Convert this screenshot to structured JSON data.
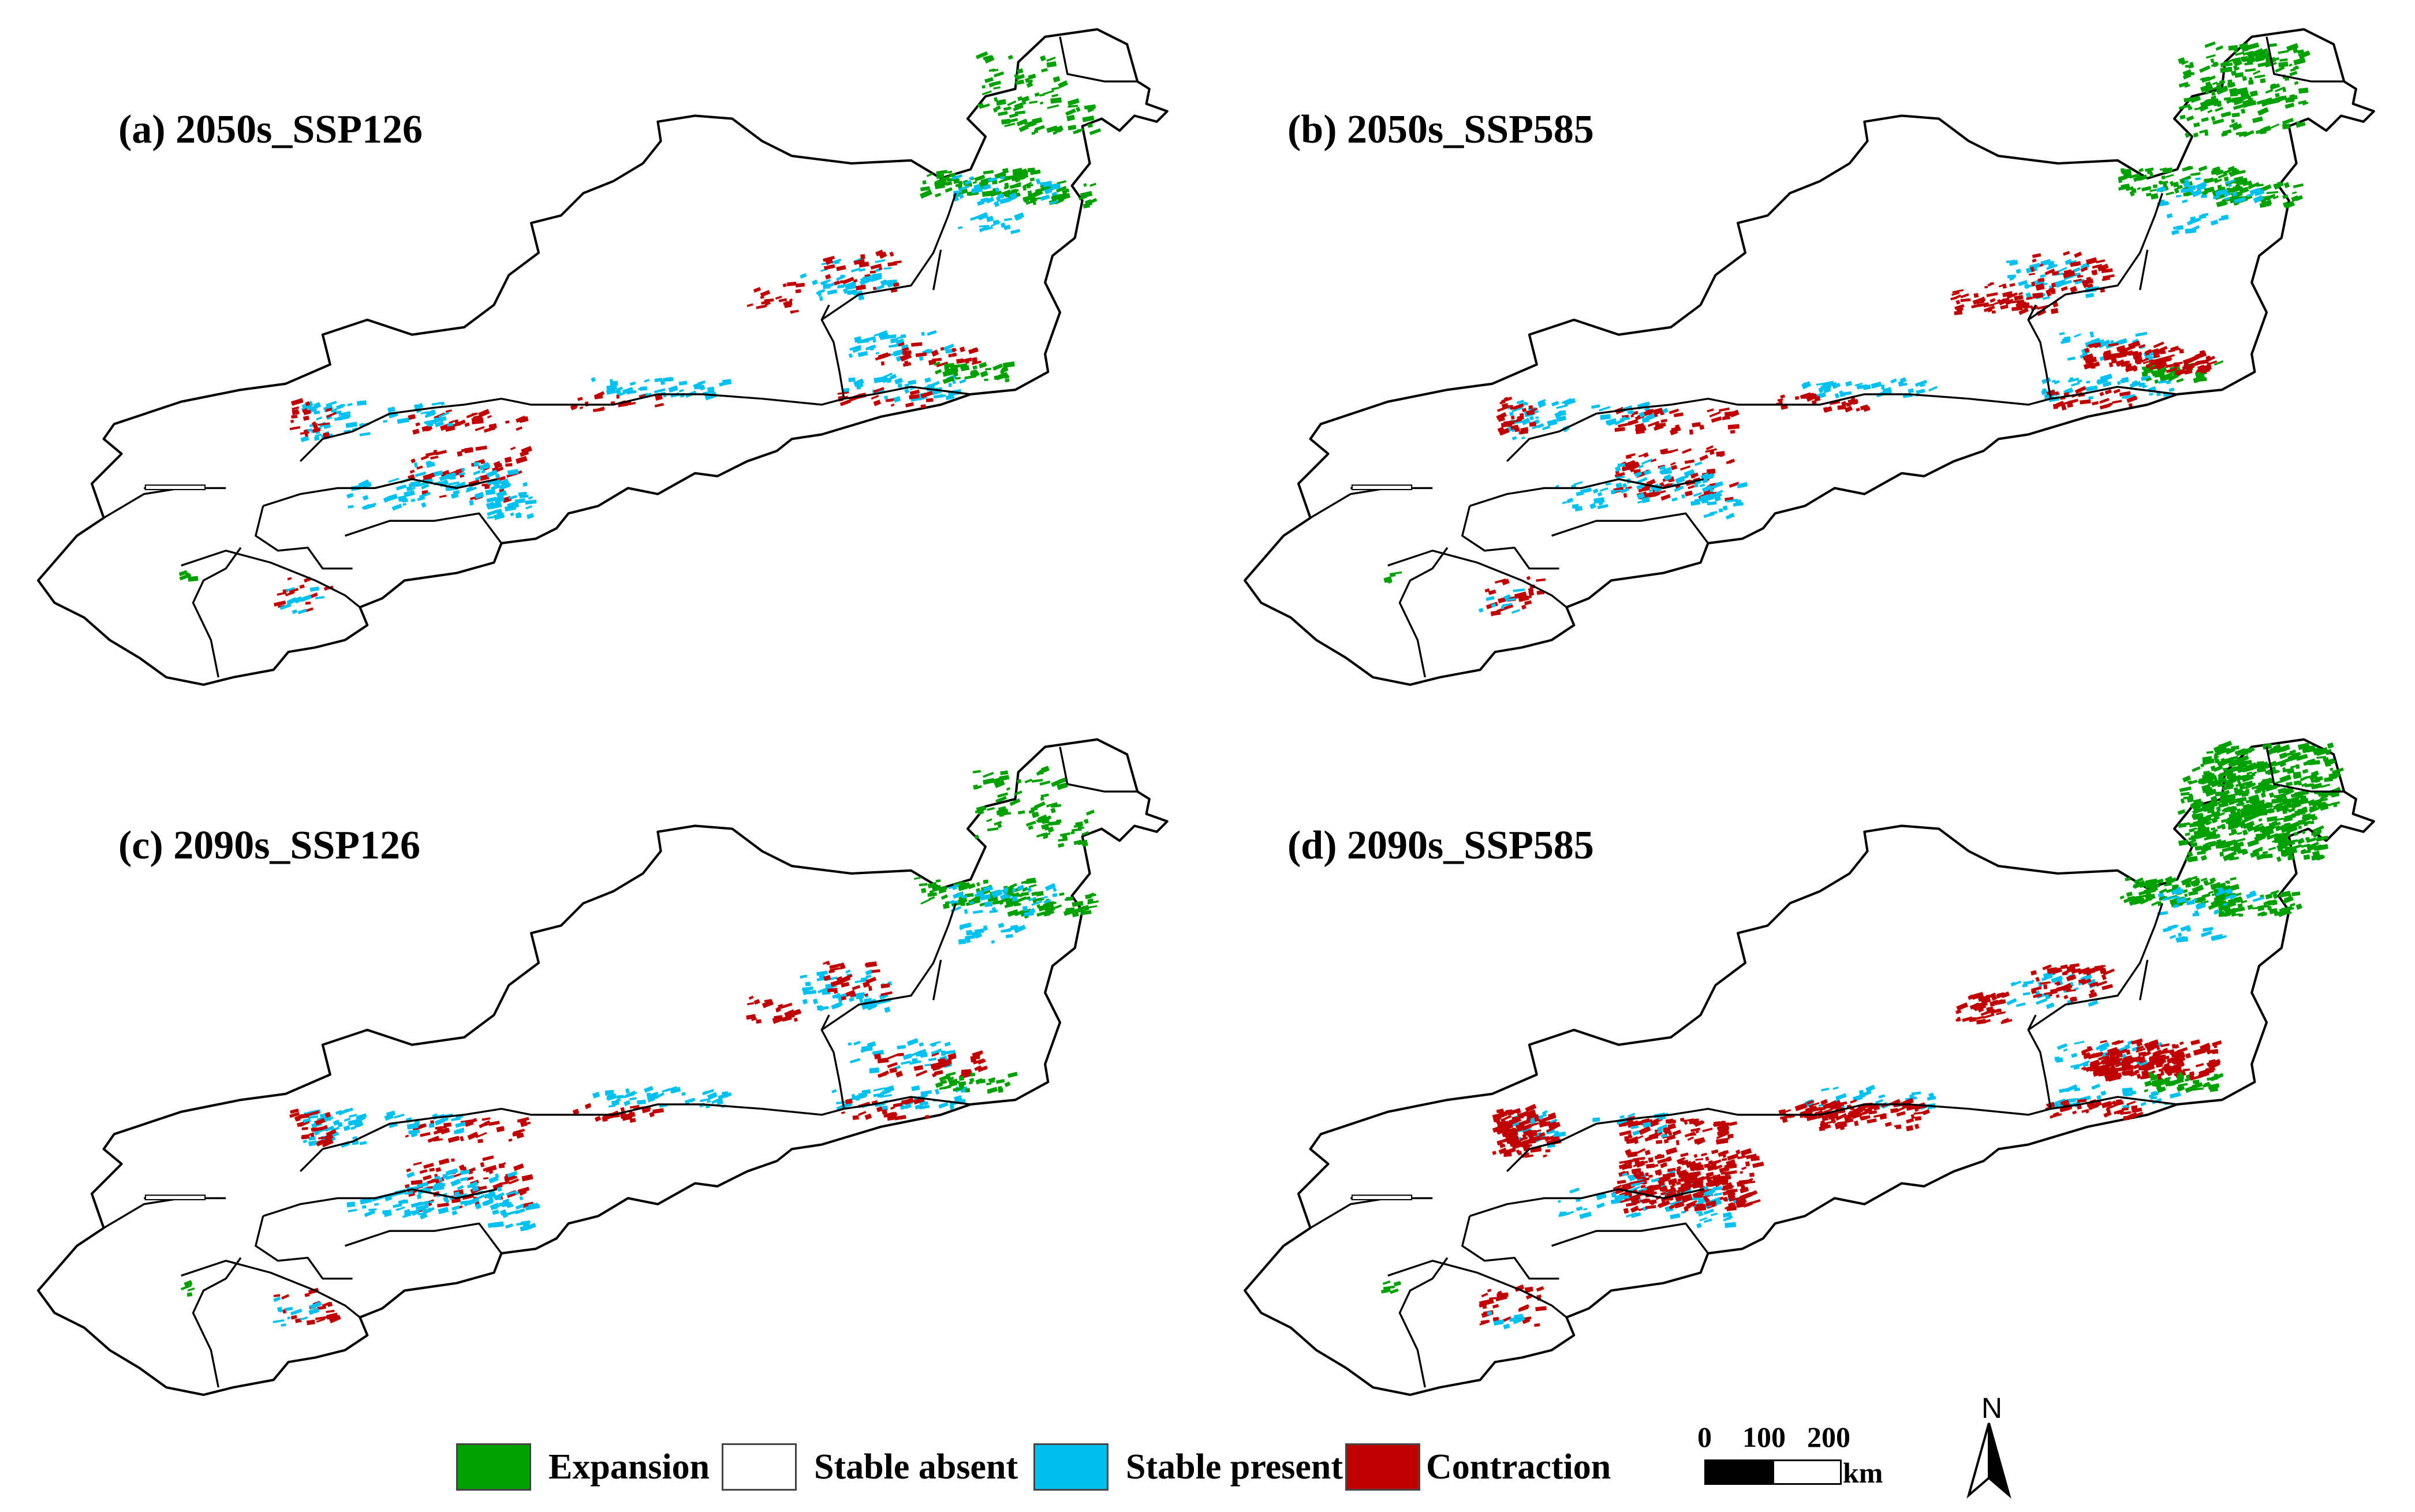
{
  "panels": [
    {
      "id": "a",
      "title": "(a) 2050s_SSP126"
    },
    {
      "id": "b",
      "title": "(b) 2050s_SSP585"
    },
    {
      "id": "c",
      "title": "(c) 2090s_SSP126"
    },
    {
      "id": "d",
      "title": "(d) 2090s_SSP585"
    }
  ],
  "legend": [
    {
      "key": "expansion",
      "label": "Expansion",
      "color": "#00A000"
    },
    {
      "key": "stable_absent",
      "label": "Stable absent",
      "color": "#FFFFFF"
    },
    {
      "key": "stable_present",
      "label": "Stable present",
      "color": "#00C0F0"
    },
    {
      "key": "contraction",
      "label": "Contraction",
      "color": "#C00000"
    }
  ],
  "scale_bar": {
    "ticks": [
      "0",
      "100",
      "200"
    ],
    "unit": "km"
  },
  "north_arrow": {
    "label": "N"
  }
}
